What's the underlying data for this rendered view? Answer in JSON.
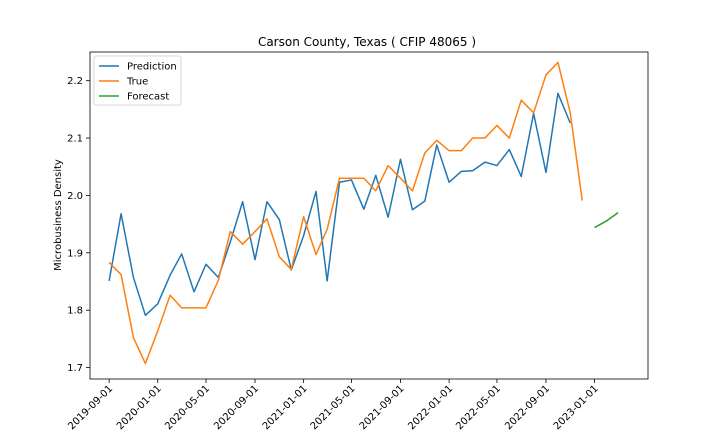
{
  "chart_data": {
    "type": "line",
    "title": "Carson County, Texas ( CFIP 48065 )",
    "xlabel": "",
    "ylabel": "Microbusiness Density",
    "x_ticks": [
      "2019-09-01",
      "2020-01-01",
      "2020-05-01",
      "2020-09-01",
      "2021-01-01",
      "2021-05-01",
      "2021-09-01",
      "2022-01-01",
      "2022-05-01",
      "2022-09-01",
      "2023-01-01"
    ],
    "y_ticks": [
      "1.7",
      "1.8",
      "1.9",
      "2.0",
      "2.1",
      "2.2"
    ],
    "ylim": [
      1.68,
      2.25
    ],
    "xlim": [
      "2019-07-15",
      "2023-05-15"
    ],
    "legend_position": "top-left",
    "grid": false,
    "series": [
      {
        "name": "Prediction",
        "color": "#1f77b4",
        "x": [
          "2019-09-01",
          "2019-10-01",
          "2019-11-01",
          "2019-12-01",
          "2020-01-01",
          "2020-02-01",
          "2020-03-01",
          "2020-04-01",
          "2020-05-01",
          "2020-06-01",
          "2020-07-01",
          "2020-08-01",
          "2020-09-01",
          "2020-10-01",
          "2020-11-01",
          "2020-12-01",
          "2021-01-01",
          "2021-02-01",
          "2021-03-01",
          "2021-04-01",
          "2021-05-01",
          "2021-06-01",
          "2021-07-01",
          "2021-08-01",
          "2021-09-01",
          "2021-10-01",
          "2021-11-01",
          "2021-12-01",
          "2022-01-01",
          "2022-02-01",
          "2022-03-01",
          "2022-04-01",
          "2022-05-01",
          "2022-06-01",
          "2022-07-01",
          "2022-08-01",
          "2022-09-01",
          "2022-10-01",
          "2022-11-01"
        ],
        "values": [
          1.851,
          1.968,
          1.857,
          1.791,
          1.811,
          1.861,
          1.898,
          1.832,
          1.88,
          1.857,
          1.919,
          1.989,
          1.888,
          1.989,
          1.958,
          1.87,
          1.93,
          2.007,
          1.851,
          2.023,
          2.027,
          1.976,
          2.035,
          1.962,
          2.063,
          1.975,
          1.99,
          2.088,
          2.023,
          2.042,
          2.043,
          2.058,
          2.052,
          2.08,
          2.033,
          2.143,
          2.04,
          2.178,
          2.126
        ]
      },
      {
        "name": "True",
        "color": "#ff7f0e",
        "x": [
          "2019-09-01",
          "2019-10-01",
          "2019-11-01",
          "2019-12-01",
          "2020-01-01",
          "2020-02-01",
          "2020-03-01",
          "2020-04-01",
          "2020-05-01",
          "2020-06-01",
          "2020-07-01",
          "2020-08-01",
          "2020-09-01",
          "2020-10-01",
          "2020-11-01",
          "2020-12-01",
          "2021-01-01",
          "2021-02-01",
          "2021-03-01",
          "2021-04-01",
          "2021-05-01",
          "2021-06-01",
          "2021-07-01",
          "2021-08-01",
          "2021-09-01",
          "2021-10-01",
          "2021-11-01",
          "2021-12-01",
          "2022-01-01",
          "2022-02-01",
          "2022-03-01",
          "2022-04-01",
          "2022-05-01",
          "2022-06-01",
          "2022-07-01",
          "2022-08-01",
          "2022-09-01",
          "2022-10-01",
          "2022-11-01",
          "2022-12-01"
        ],
        "values": [
          1.883,
          1.862,
          1.752,
          1.707,
          1.764,
          1.826,
          1.804,
          1.804,
          1.804,
          1.852,
          1.937,
          1.915,
          1.937,
          1.959,
          1.893,
          1.871,
          1.963,
          1.897,
          1.941,
          2.03,
          2.03,
          2.03,
          2.008,
          2.052,
          2.03,
          2.008,
          2.074,
          2.096,
          2.078,
          2.078,
          2.1,
          2.1,
          2.122,
          2.1,
          2.166,
          2.144,
          2.21,
          2.232,
          2.144,
          1.991
        ]
      },
      {
        "name": "Forecast",
        "color": "#2ca02c",
        "x": [
          "2023-01-01",
          "2023-02-01",
          "2023-03-01"
        ],
        "values": [
          1.944,
          1.956,
          1.97
        ]
      }
    ]
  }
}
